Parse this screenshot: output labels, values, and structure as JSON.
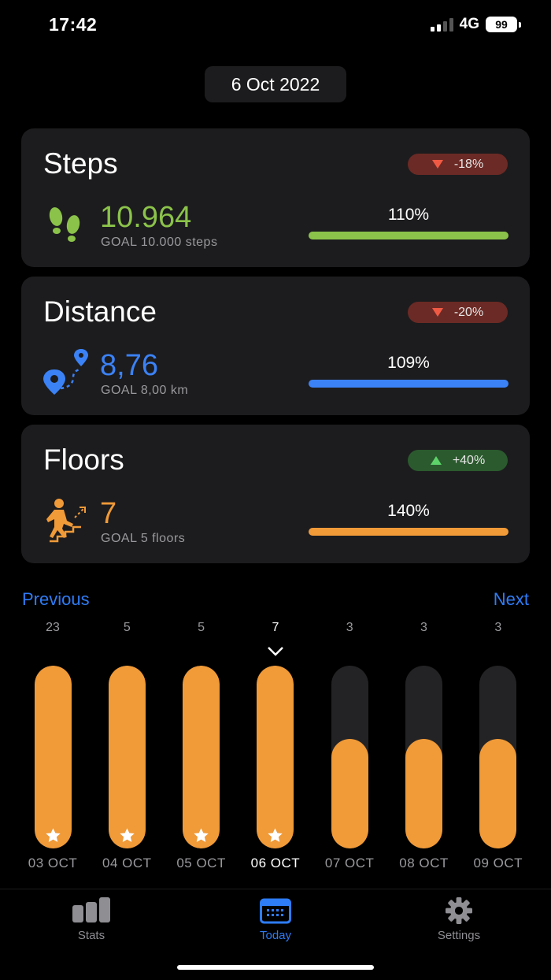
{
  "status_bar": {
    "time": "17:42",
    "network": "4G",
    "battery": "99"
  },
  "date": "6 Oct 2022",
  "cards": {
    "steps": {
      "title": "Steps",
      "change": "-18%",
      "trend": "down",
      "value": "10.964",
      "goal": "GOAL 10.000 steps",
      "percent_text": "110%",
      "progress": 1.0,
      "color": "#8bc34a",
      "icon": "footprints-icon"
    },
    "distance": {
      "title": "Distance",
      "change": "-20%",
      "trend": "down",
      "value": "8,76",
      "goal": "GOAL 8,00 km",
      "percent_text": "109%",
      "progress": 1.0,
      "color": "#3b82f6",
      "icon": "route-pin-icon"
    },
    "floors": {
      "title": "Floors",
      "change": "+40%",
      "trend": "up",
      "value": "7",
      "goal": "GOAL 5 floors",
      "percent_text": "140%",
      "progress": 1.0,
      "color": "#f09a38",
      "icon": "stairs-climber-icon"
    }
  },
  "navigation": {
    "previous": "Previous",
    "next": "Next"
  },
  "chart": {
    "days": [
      {
        "value": "23",
        "label": "03 OCT",
        "fill": 1.0,
        "goal_met": true,
        "selected": false
      },
      {
        "value": "5",
        "label": "04 OCT",
        "fill": 1.0,
        "goal_met": true,
        "selected": false
      },
      {
        "value": "5",
        "label": "05 OCT",
        "fill": 1.0,
        "goal_met": true,
        "selected": false
      },
      {
        "value": "7",
        "label": "06 OCT",
        "fill": 1.0,
        "goal_met": true,
        "selected": true
      },
      {
        "value": "3",
        "label": "07 OCT",
        "fill": 0.6,
        "goal_met": false,
        "selected": false
      },
      {
        "value": "3",
        "label": "08 OCT",
        "fill": 0.6,
        "goal_met": false,
        "selected": false
      },
      {
        "value": "3",
        "label": "09 OCT",
        "fill": 0.6,
        "goal_met": false,
        "selected": false
      }
    ]
  },
  "tabs": [
    {
      "label": "Stats",
      "icon": "bar-chart-icon",
      "active": false
    },
    {
      "label": "Today",
      "icon": "calendar-icon",
      "active": true
    },
    {
      "label": "Settings",
      "icon": "gear-icon",
      "active": false
    }
  ]
}
